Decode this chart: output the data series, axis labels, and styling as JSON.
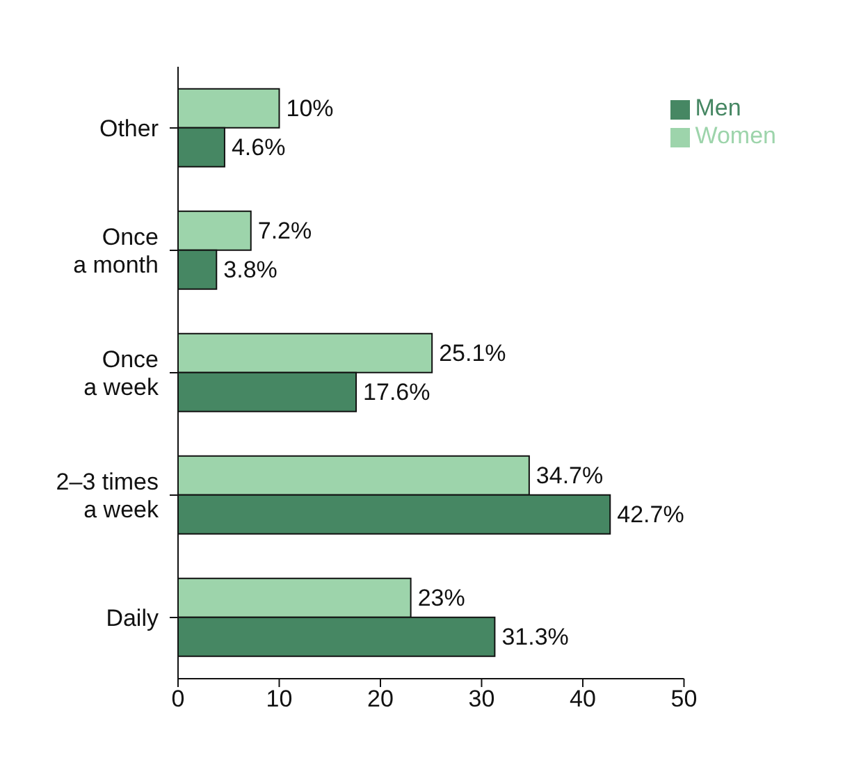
{
  "chart_data": {
    "type": "bar",
    "orientation": "horizontal",
    "categories": [
      "Other",
      "Once\na month",
      "Once\na week",
      "2–3 times\na week",
      "Daily"
    ],
    "series": [
      {
        "name": "Women",
        "color": "#9dd4ab",
        "values": [
          10,
          7.2,
          25.1,
          34.7,
          23
        ],
        "value_labels": [
          "10%",
          "7.2%",
          "25.1%",
          "34.7%",
          "23%"
        ]
      },
      {
        "name": "Men",
        "color": "#468763",
        "values": [
          4.6,
          3.8,
          17.6,
          42.7,
          31.3
        ],
        "value_labels": [
          "4.6%",
          "3.8%",
          "17.6%",
          "42.7%",
          "31.3%"
        ]
      }
    ],
    "xlim": [
      0,
      50
    ],
    "xticks": [
      0,
      10,
      20,
      30,
      40,
      50
    ],
    "grid": false,
    "legend": "top right"
  }
}
